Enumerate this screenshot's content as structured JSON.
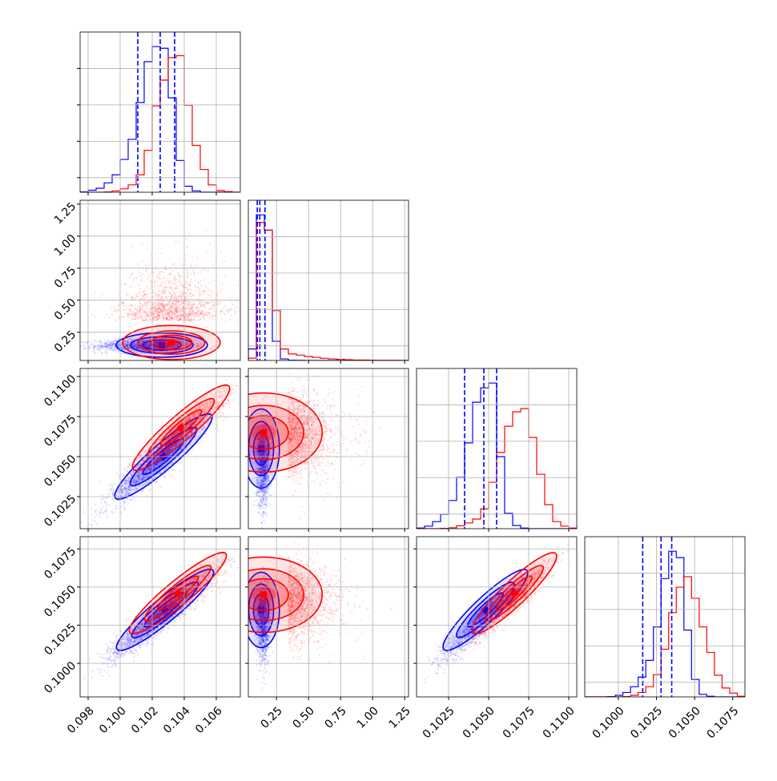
{
  "chart_data": {
    "type": "corner",
    "title": "",
    "grid": true,
    "series": [
      {
        "color": "#0000ff"
      },
      {
        "color": "#ff0000"
      }
    ],
    "variables": [
      {
        "index": 0,
        "range": [
          0.0975,
          0.1075
        ],
        "ticks": [
          0.098,
          0.1,
          0.102,
          0.104,
          0.106
        ],
        "tick_labels": [
          "0.098",
          "0.100",
          "0.102",
          "0.104",
          "0.106"
        ]
      },
      {
        "index": 1,
        "range": [
          0.03,
          1.28
        ],
        "ticks": [
          0.25,
          0.5,
          0.75,
          1.0,
          1.25
        ],
        "tick_labels": [
          "0.25",
          "0.50",
          "0.75",
          "1.00",
          "1.25"
        ]
      },
      {
        "index": 2,
        "range": [
          0.1005,
          0.1105
        ],
        "ticks": [
          0.1025,
          0.105,
          0.1075,
          0.11
        ],
        "tick_labels": [
          "0.1025",
          "0.1050",
          "0.1075",
          "0.1100"
        ]
      },
      {
        "index": 3,
        "range": [
          0.0978,
          0.1083
        ],
        "ticks": [
          0.1,
          0.1025,
          0.105,
          0.1075
        ],
        "tick_labels": [
          "0.1000",
          "0.1025",
          "0.1050",
          "0.1075"
        ]
      }
    ],
    "histograms": [
      {
        "variable": 0,
        "bins": [
          0.0975,
          0.098,
          0.0985,
          0.099,
          0.0995,
          0.1,
          0.1005,
          0.101,
          0.1015,
          0.102,
          0.1025,
          0.103,
          0.1035,
          0.104,
          0.1045,
          0.105,
          0.1055,
          0.106,
          0.1065,
          0.107,
          0.1075
        ],
        "counts": [
          [
            1,
            6,
            12,
            28,
            52,
            98,
            158,
            268,
            390,
            435,
            430,
            282,
            95,
            18,
            4,
            0,
            0,
            0,
            0,
            0
          ],
          [
            0,
            0,
            0,
            1,
            4,
            10,
            22,
            52,
            125,
            258,
            335,
            402,
            408,
            260,
            140,
            68,
            22,
            5,
            2,
            0
          ]
        ],
        "quantiles": [
          0.1011,
          0.1025,
          0.1034
        ]
      },
      {
        "variable": 1,
        "bins": [
          0.03,
          0.0925,
          0.155,
          0.2175,
          0.28,
          0.3425,
          0.405,
          0.4675,
          0.53,
          0.5925,
          0.655,
          0.7175,
          0.78,
          0.8425,
          0.905,
          0.9675,
          1.03,
          1.0925,
          1.155,
          1.2175,
          1.28
        ],
        "counts": [
          [
            150,
            1900,
            1700,
            250,
            20,
            3,
            1,
            0,
            0,
            0,
            0,
            0,
            0,
            0,
            0,
            0,
            0,
            0,
            0,
            0
          ],
          [
            30,
            1800,
            1700,
            650,
            150,
            85,
            70,
            52,
            40,
            28,
            20,
            14,
            10,
            6,
            5,
            3,
            2,
            1,
            1,
            0
          ]
        ],
        "quantiles": [
          0.1,
          0.12,
          0.16
        ]
      },
      {
        "variable": 2,
        "bins": [
          0.1005,
          0.101,
          0.1015,
          0.102,
          0.1025,
          0.103,
          0.1035,
          0.104,
          0.1045,
          0.105,
          0.1055,
          0.106,
          0.1065,
          0.107,
          0.1075,
          0.108,
          0.1085,
          0.109,
          0.1095,
          0.11,
          0.1105
        ],
        "counts": [
          [
            2,
            8,
            22,
            45,
            88,
            160,
            268,
            395,
            440,
            455,
            225,
            48,
            10,
            2,
            0,
            0,
            0,
            0,
            0,
            0
          ],
          [
            0,
            0,
            0,
            1,
            3,
            9,
            18,
            30,
            62,
            145,
            238,
            320,
            365,
            375,
            285,
            170,
            75,
            22,
            8,
            2
          ]
        ],
        "quantiles": [
          0.1035,
          0.1047,
          0.1055
        ]
      },
      {
        "variable": 3,
        "bins": [
          0.0978,
          0.0983,
          0.0988,
          0.0993,
          0.0998,
          0.1003,
          0.1008,
          0.1013,
          0.1018,
          0.1023,
          0.1028,
          0.1033,
          0.1038,
          0.1043,
          0.1048,
          0.1053,
          0.1058,
          0.1063,
          0.1068,
          0.1073,
          0.1078,
          0.1083
        ],
        "counts": [
          [
            0,
            0,
            0,
            1,
            5,
            14,
            32,
            62,
            115,
            220,
            372,
            458,
            438,
            210,
            55,
            8,
            2,
            0,
            0,
            0,
            0
          ],
          [
            0,
            0,
            0,
            0,
            0,
            1,
            5,
            14,
            32,
            70,
            150,
            265,
            345,
            378,
            310,
            220,
            140,
            68,
            28,
            12,
            2
          ]
        ],
        "quantiles": [
          0.1016,
          0.1028,
          0.1035
        ]
      }
    ],
    "panels_2d": [
      {
        "x": 0,
        "y": 1,
        "scatter": [
          {
            "x_mean": 0.1015,
            "x_sd": 0.0015,
            "y_mean": 0.145,
            "y_sd": 0.025
          },
          {
            "x_mean": 0.1032,
            "x_sd": 0.0016,
            "y_mean": 0.34,
            "y_sd": 0.2
          }
        ],
        "peaks": [
          [
            0.1026,
            0.15
          ],
          [
            0.1032,
            0.17
          ]
        ]
      },
      {
        "x": 0,
        "y": 2,
        "scatter": [
          {
            "x_mean": 0.1022,
            "x_sd": 0.0015,
            "y_mean": 0.1045,
            "y_sd": 0.0013
          },
          {
            "x_mean": 0.1036,
            "x_sd": 0.0015,
            "y_mean": 0.1063,
            "y_sd": 0.0013
          }
        ],
        "peaks": [
          [
            0.1027,
            0.105
          ],
          [
            0.1038,
            0.1068
          ]
        ]
      },
      {
        "x": 0,
        "y": 3,
        "scatter": [
          {
            "x_mean": 0.1022,
            "x_sd": 0.0015,
            "y_mean": 0.1027,
            "y_sd": 0.0013
          },
          {
            "x_mean": 0.1035,
            "x_sd": 0.0015,
            "y_mean": 0.104,
            "y_sd": 0.0013
          }
        ],
        "peaks": [
          [
            0.1028,
            0.1035
          ],
          [
            0.1036,
            0.1046
          ]
        ]
      },
      {
        "x": 1,
        "y": 2,
        "scatter": [
          {
            "x_mean": 0.145,
            "x_sd": 0.025,
            "y_mean": 0.1045,
            "y_sd": 0.0013
          },
          {
            "x_mean": 0.34,
            "x_sd": 0.2,
            "y_mean": 0.1063,
            "y_sd": 0.0013
          }
        ],
        "peaks": [
          [
            0.13,
            0.1055
          ],
          [
            0.15,
            0.1065
          ]
        ]
      },
      {
        "x": 1,
        "y": 3,
        "scatter": [
          {
            "x_mean": 0.145,
            "x_sd": 0.025,
            "y_mean": 0.1027,
            "y_sd": 0.0013
          },
          {
            "x_mean": 0.34,
            "x_sd": 0.2,
            "y_mean": 0.104,
            "y_sd": 0.0013
          }
        ],
        "peaks": [
          [
            0.13,
            0.1035
          ],
          [
            0.15,
            0.1045
          ]
        ]
      },
      {
        "x": 2,
        "y": 3,
        "scatter": [
          {
            "x_mean": 0.1045,
            "x_sd": 0.0013,
            "y_mean": 0.1027,
            "y_sd": 0.0013
          },
          {
            "x_mean": 0.1063,
            "x_sd": 0.0013,
            "y_mean": 0.104,
            "y_sd": 0.0013
          }
        ],
        "peaks": [
          [
            0.1048,
            0.1035
          ],
          [
            0.1066,
            0.1046
          ]
        ]
      }
    ],
    "xlabel": "",
    "ylabel": ""
  }
}
